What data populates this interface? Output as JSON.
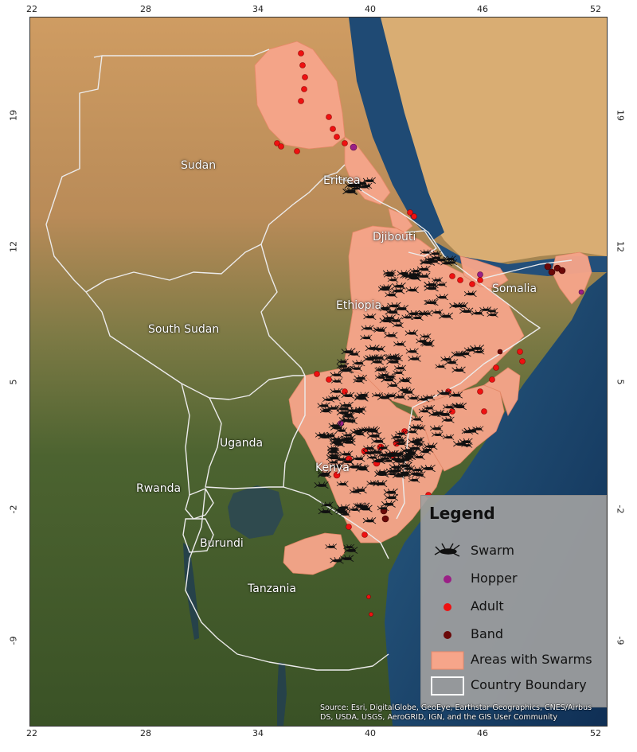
{
  "map": {
    "longitude_ticks_top": [
      "22",
      "28",
      "34",
      "40",
      "46",
      "52"
    ],
    "longitude_ticks_bottom": [
      "22",
      "28",
      "34",
      "40",
      "46",
      "52"
    ],
    "latitude_ticks_left": [
      "19",
      "12",
      "5",
      "-2",
      "-9"
    ],
    "latitude_ticks_right": [
      "19",
      "12",
      "5",
      "-2",
      "-9"
    ],
    "countries": {
      "sudan": "Sudan",
      "eritrea": "Eritrea",
      "djibouti": "Djibouti",
      "ethiopia": "Ethiopia",
      "somalia": "Somalia",
      "south_sudan": "South Sudan",
      "uganda": "Uganda",
      "kenya": "Kenya",
      "rwanda": "Rwanda",
      "burundi": "Burundi",
      "tanzania": "Tanzania"
    },
    "attribution": "Source: Esri, DigitalGlobe, GeoEye, Earthstar Geographics, CNES/Airbus DS, USDA, USGS, AeroGRID, IGN, and the GIS User Community"
  },
  "legend": {
    "title": "Legend",
    "swarm": "Swarm",
    "hopper": "Hopper",
    "adult": "Adult",
    "band": "Band",
    "areas": "Areas with Swarms",
    "boundary": "Country Boundary"
  },
  "colors": {
    "swarm_area": "#f6a58a",
    "hopper": "#9b1f86",
    "adult": "#ee1111",
    "band": "#6a0808",
    "boundary": "#e8e8e8",
    "sea": "#1d4f7a",
    "desert": "#c99a63",
    "vegetation": "#3f5a2c"
  }
}
